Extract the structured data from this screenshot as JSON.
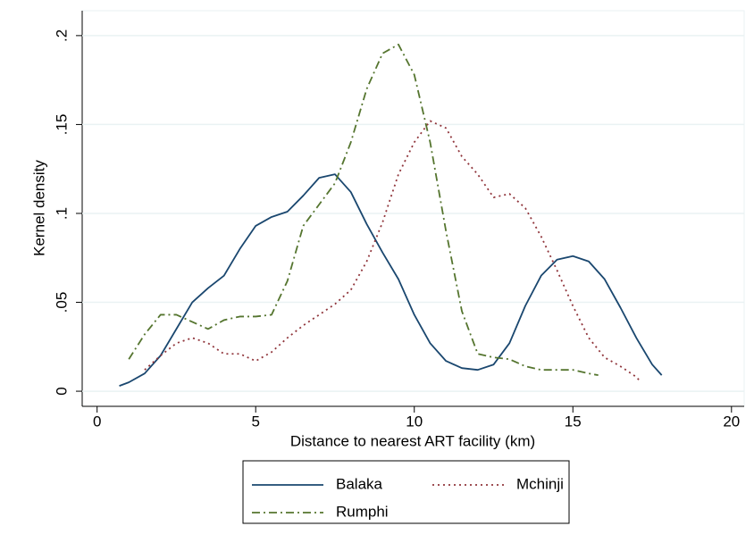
{
  "chart_data": {
    "type": "line",
    "xlabel": "Distance to nearest ART facility (km)",
    "ylabel": "Kernel density",
    "xlim": [
      -0.47,
      20.4
    ],
    "ylim": [
      -0.0085,
      0.214
    ],
    "xticks": [
      0,
      5,
      10,
      15,
      20
    ],
    "yticks": [
      0,
      {
        "value": 0.05,
        "label": ".05"
      },
      {
        "value": 0.1,
        "label": ".1"
      },
      {
        "value": 0.15,
        "label": ".15"
      },
      {
        "value": 0.2,
        "label": ".2"
      }
    ],
    "grid": true,
    "legend": "bottom",
    "series": [
      {
        "name": "Balaka",
        "color": "#1a476f",
        "dash": "solid",
        "x": [
          0.7,
          1,
          1.5,
          2,
          2.5,
          3,
          3.5,
          4,
          4.5,
          5,
          5.5,
          6,
          6.5,
          7,
          7.5,
          8,
          8.5,
          9,
          9.5,
          10,
          10.5,
          11,
          11.5,
          12,
          12.5,
          13,
          13.5,
          14,
          14.5,
          15,
          15.5,
          16,
          16.5,
          17,
          17.5,
          17.8
        ],
        "values": [
          0.003,
          0.005,
          0.01,
          0.02,
          0.035,
          0.05,
          0.058,
          0.065,
          0.08,
          0.093,
          0.098,
          0.101,
          0.11,
          0.12,
          0.122,
          0.112,
          0.094,
          0.078,
          0.063,
          0.043,
          0.027,
          0.017,
          0.013,
          0.012,
          0.015,
          0.027,
          0.048,
          0.065,
          0.074,
          0.076,
          0.073,
          0.063,
          0.047,
          0.03,
          0.015,
          0.009
        ]
      },
      {
        "name": "Mchinji",
        "color": "#90353b",
        "dash": "dot",
        "x": [
          1.5,
          2,
          2.5,
          3,
          3.5,
          4,
          4.5,
          5,
          5.5,
          6,
          6.5,
          7,
          7.5,
          8,
          8.5,
          9,
          9.5,
          10,
          10.5,
          11,
          11.5,
          12,
          12.5,
          13,
          13.5,
          14,
          14.5,
          15,
          15.5,
          16,
          16.5,
          17,
          17.1
        ],
        "values": [
          0.012,
          0.02,
          0.027,
          0.03,
          0.027,
          0.021,
          0.021,
          0.017,
          0.022,
          0.03,
          0.037,
          0.043,
          0.049,
          0.057,
          0.073,
          0.095,
          0.122,
          0.14,
          0.152,
          0.148,
          0.132,
          0.122,
          0.109,
          0.111,
          0.103,
          0.087,
          0.068,
          0.048,
          0.03,
          0.019,
          0.014,
          0.008,
          0.006
        ]
      },
      {
        "name": "Rumphi",
        "color": "#55752f",
        "dash": "dashdot",
        "x": [
          1,
          1.5,
          2,
          2.5,
          3,
          3.5,
          4,
          4.5,
          5,
          5.5,
          6,
          6.5,
          7,
          7.5,
          8,
          8.5,
          9,
          9.5,
          10,
          10.5,
          11,
          11.5,
          12,
          12.5,
          13,
          13.5,
          14,
          14.5,
          15,
          15.5,
          15.8
        ],
        "values": [
          0.018,
          0.032,
          0.043,
          0.043,
          0.039,
          0.035,
          0.04,
          0.042,
          0.042,
          0.043,
          0.062,
          0.093,
          0.105,
          0.117,
          0.14,
          0.17,
          0.19,
          0.195,
          0.178,
          0.14,
          0.09,
          0.045,
          0.021,
          0.019,
          0.018,
          0.014,
          0.012,
          0.012,
          0.012,
          0.01,
          0.009
        ]
      }
    ]
  }
}
